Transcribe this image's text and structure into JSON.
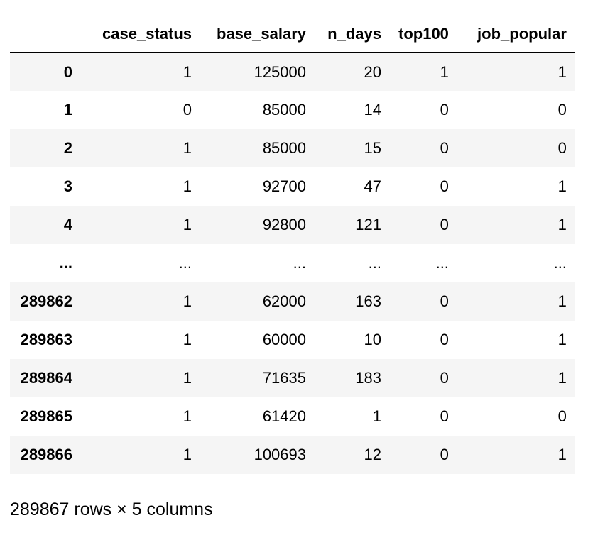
{
  "table": {
    "columns": [
      "",
      "case_status",
      "base_salary",
      "n_days",
      "top100",
      "job_popular"
    ],
    "rows": [
      {
        "index": "0",
        "cells": [
          "1",
          "125000",
          "20",
          "1",
          "1"
        ]
      },
      {
        "index": "1",
        "cells": [
          "0",
          "85000",
          "14",
          "0",
          "0"
        ]
      },
      {
        "index": "2",
        "cells": [
          "1",
          "85000",
          "15",
          "0",
          "0"
        ]
      },
      {
        "index": "3",
        "cells": [
          "1",
          "92700",
          "47",
          "0",
          "1"
        ]
      },
      {
        "index": "4",
        "cells": [
          "1",
          "92800",
          "121",
          "0",
          "1"
        ]
      },
      {
        "index": "...",
        "cells": [
          "...",
          "...",
          "...",
          "...",
          "..."
        ]
      },
      {
        "index": "289862",
        "cells": [
          "1",
          "62000",
          "163",
          "0",
          "1"
        ]
      },
      {
        "index": "289863",
        "cells": [
          "1",
          "60000",
          "10",
          "0",
          "1"
        ]
      },
      {
        "index": "289864",
        "cells": [
          "1",
          "71635",
          "183",
          "0",
          "1"
        ]
      },
      {
        "index": "289865",
        "cells": [
          "1",
          "61420",
          "1",
          "0",
          "0"
        ]
      },
      {
        "index": "289866",
        "cells": [
          "1",
          "100693",
          "12",
          "0",
          "1"
        ]
      }
    ]
  },
  "caption": "289867 rows × 5 columns"
}
